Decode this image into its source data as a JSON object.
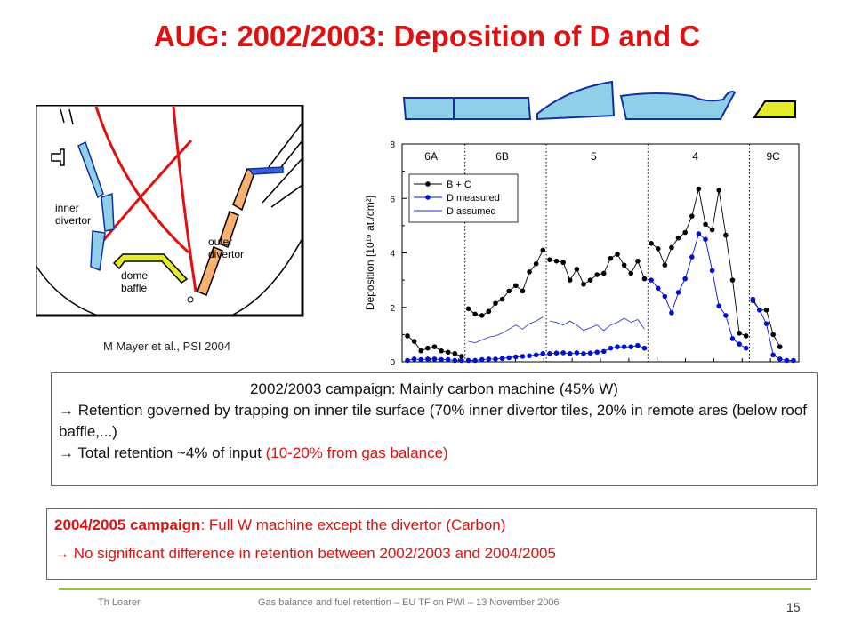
{
  "title": "AUG: 2002/2003: Deposition of D and C",
  "diagram": {
    "labels": {
      "inner": "inner",
      "inner2": "divertor",
      "outer": "outer",
      "outer2": "divertor",
      "dome": "dome",
      "dome2": "baffle"
    },
    "citation": "M Mayer et al., PSI 2004"
  },
  "chart_data": {
    "type": "scatter",
    "ylabel": "Deposition [10¹⁹ at./cm²]",
    "ylim": [
      0,
      8
    ],
    "yticks": [
      "0",
      "2",
      "4",
      "6",
      "8"
    ],
    "grid": false,
    "legend_position": "top-left",
    "regions": [
      "6A",
      "6B",
      "5",
      "4",
      "9C"
    ],
    "legend": [
      "B + C",
      "D measured",
      "D assumed"
    ],
    "colors": {
      "bc": "#000000",
      "dm": "#0010d0",
      "da": "#2030c0"
    },
    "series": [
      {
        "name": "B + C",
        "segments": [
          [
            [
              0,
              0.95
            ],
            [
              1,
              0.75
            ],
            [
              2,
              0.4
            ],
            [
              3,
              0.5
            ],
            [
              4,
              0.55
            ],
            [
              5,
              0.4
            ],
            [
              6,
              0.35
            ],
            [
              7,
              0.3
            ],
            [
              8,
              0.2
            ]
          ],
          [
            [
              9,
              1.95
            ],
            [
              10,
              1.75
            ],
            [
              11,
              1.7
            ],
            [
              12,
              1.85
            ],
            [
              13,
              2.15
            ],
            [
              14,
              2.3
            ],
            [
              15,
              2.6
            ],
            [
              16,
              2.8
            ],
            [
              17,
              2.6
            ],
            [
              18,
              3.3
            ],
            [
              19,
              3.6
            ],
            [
              20,
              4.1
            ]
          ],
          [
            [
              21,
              3.75
            ],
            [
              22,
              3.7
            ],
            [
              23,
              3.65
            ],
            [
              24,
              3.0
            ],
            [
              25,
              3.4
            ],
            [
              26,
              2.85
            ],
            [
              27,
              3.0
            ],
            [
              28,
              3.2
            ],
            [
              29,
              3.25
            ],
            [
              30,
              3.8
            ],
            [
              31,
              3.95
            ],
            [
              32,
              3.55
            ],
            [
              33,
              3.25
            ],
            [
              34,
              3.7
            ],
            [
              35,
              3.05
            ]
          ],
          [
            [
              36,
              4.35
            ],
            [
              37,
              4.15
            ],
            [
              38,
              3.55
            ],
            [
              39,
              4.2
            ],
            [
              40,
              4.55
            ],
            [
              41,
              4.75
            ],
            [
              42,
              5.35
            ],
            [
              43,
              6.35
            ],
            [
              44,
              5.05
            ],
            [
              45,
              4.85
            ],
            [
              46,
              6.3
            ],
            [
              47,
              4.65
            ],
            [
              48,
              3.0
            ],
            [
              49,
              1.05
            ],
            [
              50,
              0.95
            ]
          ],
          [
            [
              51,
              2.25
            ],
            [
              52,
              1.9
            ],
            [
              53,
              1.9
            ],
            [
              54,
              1.0
            ],
            [
              55,
              0.55
            ]
          ]
        ]
      },
      {
        "name": "D measured",
        "segments": [
          [
            [
              0,
              0.05
            ],
            [
              1,
              0.1
            ],
            [
              2,
              0.08
            ],
            [
              3,
              0.1
            ],
            [
              4,
              0.1
            ],
            [
              5,
              0.08
            ],
            [
              6,
              0.08
            ],
            [
              7,
              0.05
            ],
            [
              8,
              0.05
            ]
          ],
          [
            [
              9,
              0.05
            ],
            [
              10,
              0.05
            ],
            [
              11,
              0.08
            ],
            [
              12,
              0.1
            ],
            [
              13,
              0.1
            ],
            [
              14,
              0.12
            ],
            [
              15,
              0.15
            ],
            [
              16,
              0.18
            ],
            [
              17,
              0.2
            ],
            [
              18,
              0.22
            ],
            [
              19,
              0.25
            ],
            [
              20,
              0.3
            ]
          ],
          [
            [
              21,
              0.3
            ],
            [
              22,
              0.32
            ],
            [
              23,
              0.33
            ],
            [
              24,
              0.3
            ],
            [
              25,
              0.33
            ],
            [
              26,
              0.3
            ],
            [
              27,
              0.32
            ],
            [
              28,
              0.35
            ],
            [
              29,
              0.38
            ],
            [
              30,
              0.5
            ],
            [
              31,
              0.55
            ],
            [
              32,
              0.55
            ],
            [
              33,
              0.55
            ],
            [
              34,
              0.6
            ],
            [
              35,
              0.5
            ]
          ],
          [
            [
              36,
              3.0
            ],
            [
              37,
              2.7
            ],
            [
              38,
              2.4
            ],
            [
              39,
              1.8
            ],
            [
              40,
              2.55
            ],
            [
              41,
              3.05
            ],
            [
              42,
              3.85
            ],
            [
              43,
              4.7
            ],
            [
              44,
              4.5
            ],
            [
              45,
              3.35
            ],
            [
              46,
              2.05
            ],
            [
              47,
              1.7
            ],
            [
              48,
              0.85
            ],
            [
              49,
              0.65
            ],
            [
              50,
              0.5
            ]
          ],
          [
            [
              51,
              2.3
            ],
            [
              52,
              1.9
            ],
            [
              53,
              1.4
            ],
            [
              54,
              0.25
            ],
            [
              55,
              0.1
            ],
            [
              56,
              0.05
            ],
            [
              57,
              0.05
            ]
          ]
        ]
      },
      {
        "name": "D assumed",
        "segments": [
          [
            [
              9,
              0.75
            ],
            [
              10,
              0.7
            ],
            [
              11,
              0.8
            ],
            [
              12,
              0.9
            ],
            [
              13,
              0.95
            ],
            [
              14,
              1.05
            ],
            [
              15,
              1.2
            ],
            [
              16,
              1.35
            ],
            [
              17,
              1.2
            ],
            [
              18,
              1.4
            ],
            [
              19,
              1.5
            ],
            [
              20,
              1.65
            ]
          ],
          [
            [
              21,
              1.5
            ],
            [
              22,
              1.45
            ],
            [
              23,
              1.35
            ],
            [
              24,
              1.5
            ],
            [
              25,
              1.35
            ],
            [
              26,
              1.15
            ],
            [
              27,
              1.25
            ],
            [
              28,
              1.35
            ],
            [
              29,
              1.15
            ],
            [
              30,
              1.35
            ],
            [
              31,
              1.45
            ],
            [
              32,
              1.6
            ],
            [
              33,
              1.45
            ],
            [
              34,
              1.55
            ],
            [
              35,
              1.2
            ]
          ]
        ]
      }
    ]
  },
  "box1": {
    "line1": "2002/2003 campaign: Mainly carbon machine (45% W)",
    "line2": "→ Retention governed by trapping on inner tile surface (70% inner divertor tiles, 20% in remote ares (below roof baffle,...)",
    "line3a": "→ Total retention ~4% of input ",
    "line3b": "(10-20% from gas balance)"
  },
  "box2": {
    "bold": "2004/2005 campaign",
    "rest": ": Full W machine except the divertor (Carbon)",
    "line2": "→ No significant difference in retention between 2002/2003 and 2004/2005"
  },
  "footer": {
    "author": "Th Loarer",
    "event": "Gas balance and fuel retention – EU TF on PWI – 13 November 2006",
    "page": "15"
  }
}
